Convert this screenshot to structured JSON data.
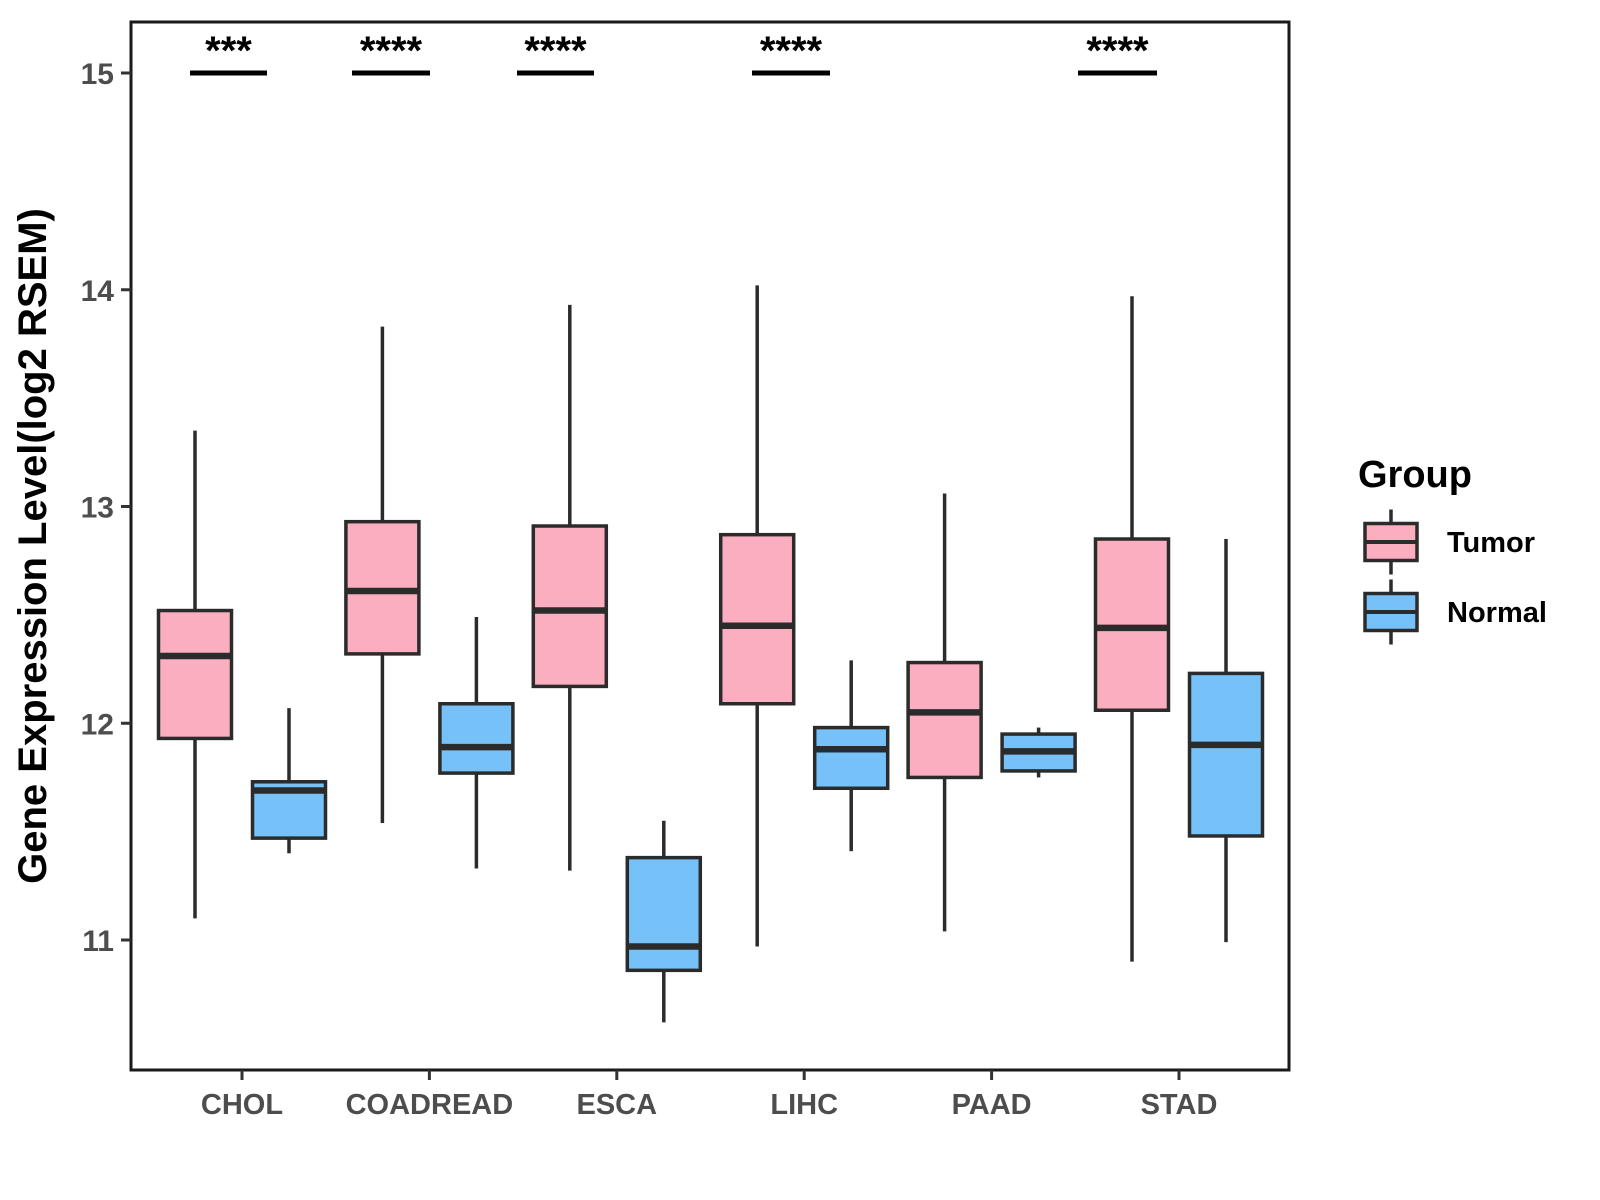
{
  "chart_data": {
    "type": "boxplot",
    "title": "",
    "xlabel": "",
    "ylabel": "Gene Expression Level(log2 RSEM)",
    "ylim": [
      10.4,
      15.24
    ],
    "y_ticks": [
      15,
      14,
      13,
      12,
      11
    ],
    "grid": "off",
    "legend_position": "right",
    "categories": [
      "CHOL",
      "COADREAD",
      "ESCA",
      "LIHC",
      "PAAD",
      "STAD"
    ],
    "groups": [
      {
        "name": "Tumor",
        "fill": "#FBAEC0"
      },
      {
        "name": "Normal",
        "fill": "#75C1F8"
      }
    ],
    "series": [
      {
        "group": "Tumor",
        "boxes": [
          {
            "category": "CHOL",
            "whisker_low": 11.1,
            "q1": 11.93,
            "median": 12.31,
            "q3": 12.52,
            "whisker_high": 13.35
          },
          {
            "category": "COADREAD",
            "whisker_low": 11.54,
            "q1": 12.32,
            "median": 12.61,
            "q3": 12.93,
            "whisker_high": 13.83
          },
          {
            "category": "ESCA",
            "whisker_low": 11.32,
            "q1": 12.17,
            "median": 12.52,
            "q3": 12.91,
            "whisker_high": 13.93
          },
          {
            "category": "LIHC",
            "whisker_low": 10.97,
            "q1": 12.09,
            "median": 12.45,
            "q3": 12.87,
            "whisker_high": 14.02
          },
          {
            "category": "PAAD",
            "whisker_low": 11.04,
            "q1": 11.75,
            "median": 12.05,
            "q3": 12.28,
            "whisker_high": 13.06
          },
          {
            "category": "STAD",
            "whisker_low": 10.9,
            "q1": 12.06,
            "median": 12.44,
            "q3": 12.85,
            "whisker_high": 13.97
          }
        ]
      },
      {
        "group": "Normal",
        "boxes": [
          {
            "category": "CHOL",
            "whisker_low": 11.4,
            "q1": 11.47,
            "median": 11.69,
            "q3": 11.73,
            "whisker_high": 12.07
          },
          {
            "category": "COADREAD",
            "whisker_low": 11.33,
            "q1": 11.77,
            "median": 11.89,
            "q3": 12.09,
            "whisker_high": 12.49
          },
          {
            "category": "ESCA",
            "whisker_low": 10.62,
            "q1": 10.86,
            "median": 10.97,
            "q3": 11.38,
            "whisker_high": 11.55
          },
          {
            "category": "LIHC",
            "whisker_low": 11.41,
            "q1": 11.7,
            "median": 11.88,
            "q3": 11.98,
            "whisker_high": 12.29
          },
          {
            "category": "PAAD",
            "whisker_low": 11.75,
            "q1": 11.78,
            "median": 11.87,
            "q3": 11.95,
            "whisker_high": 11.98
          },
          {
            "category": "STAD",
            "whisker_low": 10.99,
            "q1": 11.48,
            "median": 11.9,
            "q3": 12.23,
            "whisker_high": 12.85
          }
        ]
      }
    ],
    "significance": [
      {
        "category": "CHOL",
        "label": "***"
      },
      {
        "category": "COADREAD",
        "label": "****"
      },
      {
        "category": "ESCA",
        "label": "****"
      },
      {
        "category": "LIHC",
        "label": "****"
      },
      {
        "category": "STAD",
        "label": "****"
      }
    ],
    "legend": {
      "title": "Group",
      "entries": [
        "Tumor",
        "Normal"
      ]
    },
    "colors": {
      "box_stroke": "#2B2B2B",
      "panel_border": "#1A1A1A",
      "axis_text": "#4D4D4D",
      "label_text": "#000000"
    }
  }
}
